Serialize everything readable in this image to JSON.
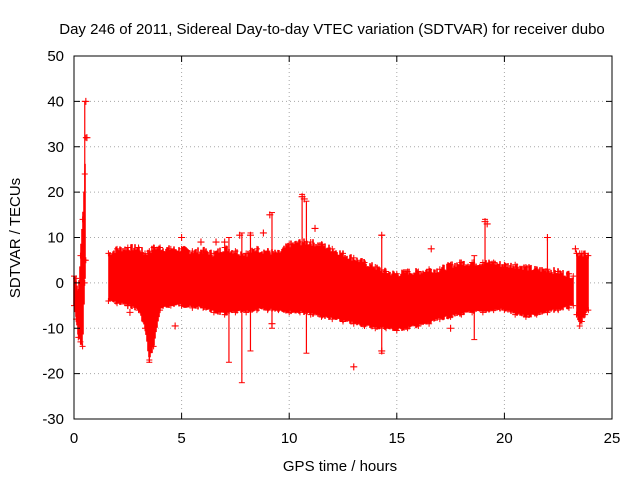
{
  "chart_data": {
    "type": "scatter",
    "title": "Day 246 of 2011, Sidereal Day-to-day VTEC variation (SDTVAR) for receiver dubo",
    "xlabel": "GPS time / hours",
    "ylabel": "SDTVAR / TECUs",
    "xlim": [
      0,
      25
    ],
    "ylim": [
      -30,
      50
    ],
    "xticks": [
      0,
      5,
      10,
      15,
      20,
      25
    ],
    "yticks": [
      -30,
      -20,
      -10,
      0,
      10,
      20,
      30,
      40,
      50
    ],
    "grid": true,
    "color": "#ff0000",
    "marker": "plus-with-errorbars",
    "envelope": {
      "x": [
        1.6,
        2.0,
        2.5,
        3.0,
        3.3,
        3.5,
        3.7,
        4.0,
        4.5,
        5.0,
        5.5,
        6.0,
        6.5,
        7.0,
        7.5,
        8.0,
        8.5,
        9.0,
        9.5,
        10.0,
        10.5,
        11.0,
        11.5,
        12.0,
        12.5,
        13.0,
        13.5,
        14.0,
        14.5,
        15.0,
        15.5,
        16.0,
        16.5,
        17.0,
        17.5,
        18.0,
        18.5,
        19.0,
        19.5,
        20.0,
        20.5,
        21.0,
        21.5,
        22.0,
        22.5,
        23.0,
        23.2
      ],
      "upper": [
        6.5,
        7.5,
        7.8,
        7.8,
        6.5,
        7.0,
        7.8,
        7.8,
        7.5,
        7.5,
        7.0,
        7.2,
        6.5,
        7.8,
        7.0,
        6.5,
        7.5,
        7.0,
        6.5,
        8.5,
        9.0,
        9.0,
        8.5,
        7.5,
        6.5,
        5.5,
        4.5,
        3.5,
        2.5,
        2.0,
        2.5,
        2.5,
        3.0,
        3.0,
        4.0,
        4.5,
        4.5,
        4.5,
        4.5,
        4.0,
        4.0,
        3.5,
        3.0,
        3.0,
        2.5,
        2.0,
        1.5
      ],
      "lower": [
        -4.0,
        -4.5,
        -5.0,
        -6.0,
        -10.0,
        -17.0,
        -14.0,
        -6.0,
        -5.0,
        -5.0,
        -5.5,
        -5.5,
        -6.5,
        -7.0,
        -6.5,
        -6.5,
        -6.0,
        -6.0,
        -6.0,
        -6.5,
        -6.5,
        -7.0,
        -7.5,
        -8.0,
        -8.5,
        -9.0,
        -9.5,
        -10.0,
        -10.0,
        -10.5,
        -10.0,
        -9.5,
        -9.0,
        -8.0,
        -7.5,
        -7.0,
        -6.5,
        -6.5,
        -6.0,
        -6.0,
        -7.0,
        -7.5,
        -7.0,
        -6.5,
        -6.0,
        -5.5,
        -5.0
      ]
    },
    "early_segment": {
      "x": [
        0.0,
        0.1,
        0.2,
        0.3,
        0.4,
        0.5,
        0.55
      ],
      "upper": [
        1.5,
        1.0,
        -2.0,
        6.0,
        14.0,
        24.0,
        32.0
      ],
      "lower": [
        -5.0,
        -8.0,
        -12.0,
        -13.0,
        -14.0,
        0.0,
        5.0
      ]
    },
    "late_segment": {
      "x": [
        23.35,
        23.5,
        23.6,
        23.75,
        23.9
      ],
      "upper": [
        6.5,
        6.5,
        6.5,
        6.5,
        6.0
      ],
      "lower": [
        -7.0,
        -9.5,
        -8.5,
        -7.0,
        -6.0
      ]
    },
    "outliers": [
      {
        "x": 0.55,
        "y": 40.0
      },
      {
        "x": 0.6,
        "y": 32.0
      },
      {
        "x": 2.5,
        "y": -5.0
      },
      {
        "x": 2.6,
        "y": -6.5
      },
      {
        "x": 4.7,
        "y": -9.5
      },
      {
        "x": 5.0,
        "y": 10.0
      },
      {
        "x": 5.9,
        "y": 9.0
      },
      {
        "x": 6.6,
        "y": 9.0
      },
      {
        "x": 7.0,
        "y": 9.0
      },
      {
        "x": 7.7,
        "y": 10.5
      },
      {
        "x": 8.2,
        "y": 10.5
      },
      {
        "x": 8.8,
        "y": 11.0
      },
      {
        "x": 9.1,
        "y": 15.0
      },
      {
        "x": 9.2,
        "y": -9.0
      },
      {
        "x": 10.6,
        "y": 19.0
      },
      {
        "x": 10.7,
        "y": 18.5
      },
      {
        "x": 11.2,
        "y": 12.0
      },
      {
        "x": 13.0,
        "y": -18.5
      },
      {
        "x": 14.3,
        "y": 10.5
      },
      {
        "x": 14.3,
        "y": -15.0
      },
      {
        "x": 16.6,
        "y": 7.5
      },
      {
        "x": 17.5,
        "y": -10.0
      },
      {
        "x": 19.1,
        "y": 13.5
      },
      {
        "x": 19.2,
        "y": 13.0
      },
      {
        "x": 22.0,
        "y": 10.0
      },
      {
        "x": 23.3,
        "y": 7.5
      }
    ],
    "spikes": [
      {
        "x": 0.5,
        "low": 5.0,
        "high": 40.0
      },
      {
        "x": 3.5,
        "low": -17.5,
        "high": -6.0
      },
      {
        "x": 7.2,
        "low": -17.5,
        "high": 10.0
      },
      {
        "x": 7.8,
        "low": -22.0,
        "high": 11.0
      },
      {
        "x": 8.2,
        "low": -15.0,
        "high": 11.0
      },
      {
        "x": 9.2,
        "low": -10.0,
        "high": 15.5
      },
      {
        "x": 10.6,
        "low": -6.0,
        "high": 19.5
      },
      {
        "x": 10.8,
        "low": -15.5,
        "high": 18.0
      },
      {
        "x": 14.3,
        "low": -15.5,
        "high": 10.5
      },
      {
        "x": 18.6,
        "low": -12.5,
        "high": 6.0
      },
      {
        "x": 19.1,
        "low": -5.0,
        "high": 14.0
      },
      {
        "x": 22.0,
        "low": 0.0,
        "high": 10.0
      }
    ]
  }
}
